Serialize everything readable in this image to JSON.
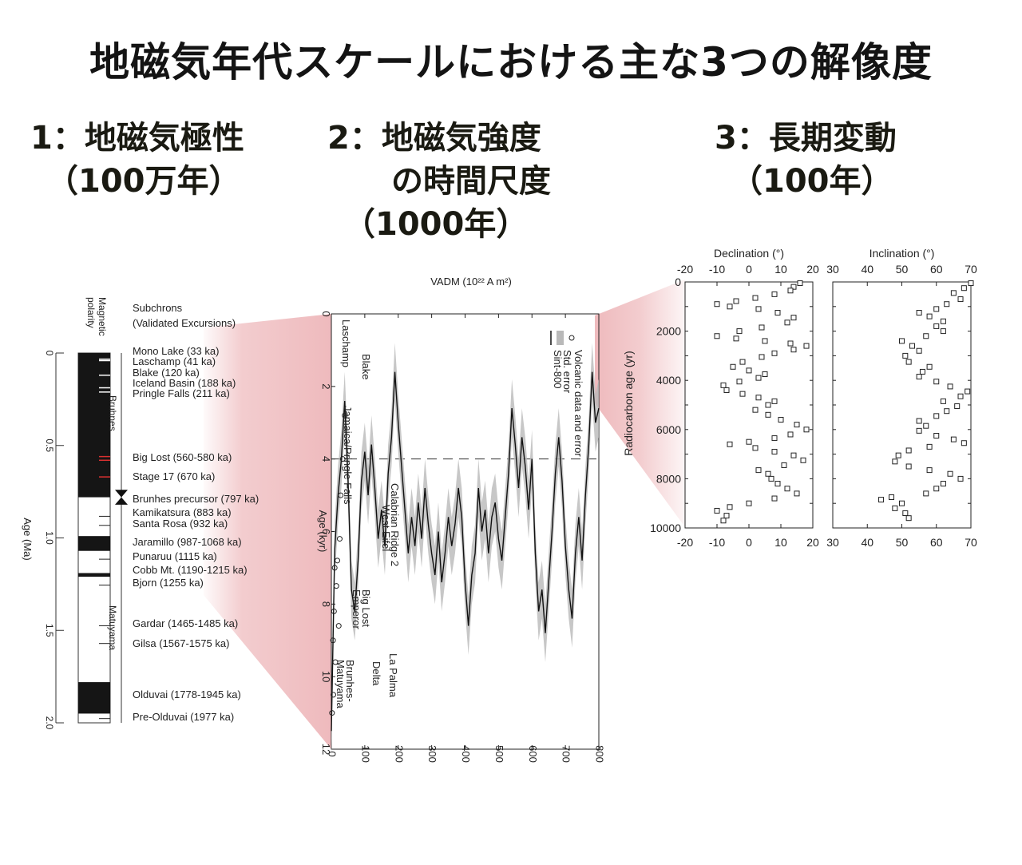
{
  "title": "地磁気年代スケールにおける主な3つの解像度",
  "headings": [
    {
      "line1": "1：地磁気極性",
      "line2": "　（100万年）",
      "line3": ""
    },
    {
      "line1": "2：地磁気強度",
      "line2": "　　の時間尺度",
      "line3": "　（1000年）"
    },
    {
      "line1": "3：長期変動",
      "line2": "　（100年）",
      "line3": ""
    }
  ],
  "chart_data": [
    {
      "type": "table",
      "name": "polarity-timescale",
      "axis_label": "Age (Ma)",
      "column_header": "Magnetic polarity",
      "list_header_1": "Subchrons",
      "list_header_2": "(Validated Excursions)",
      "ticks": [
        "0",
        "0.5",
        "1.0",
        "1.5",
        "2.0"
      ],
      "chrons": [
        "Bruhnes",
        "Matuyama"
      ],
      "normal_intervals_ma": [
        [
          0,
          0.78
        ],
        [
          0.99,
          1.07
        ],
        [
          1.19,
          1.21
        ],
        [
          1.78,
          1.95
        ]
      ],
      "events": [
        {
          "label": "Mono Lake (33 ka)",
          "age_ma": 0.033
        },
        {
          "label": "Laschamp (41 ka)",
          "age_ma": 0.041
        },
        {
          "label": "Blake (120 ka)",
          "age_ma": 0.12
        },
        {
          "label": "Iceland Basin (188 ka)",
          "age_ma": 0.188
        },
        {
          "label": "Pringle Falls (211 ka)",
          "age_ma": 0.211
        },
        {
          "label": "Big Lost (560-580 ka)",
          "age_ma": 0.57
        },
        {
          "label": "Stage 17 (670 ka)",
          "age_ma": 0.67
        },
        {
          "label": "Brunhes precursor (797 ka)",
          "age_ma": 0.797
        },
        {
          "label": "Kamikatsura (883 ka)",
          "age_ma": 0.883
        },
        {
          "label": "Santa Rosa (932 ka)",
          "age_ma": 0.932
        },
        {
          "label": "Jaramillo (987-1068 ka)",
          "age_ma": 1.03
        },
        {
          "label": "Punaruu (1115 ka)",
          "age_ma": 1.115
        },
        {
          "label": "Cobb  Mt. (1190-1215 ka)",
          "age_ma": 1.2
        },
        {
          "label": "Bjorn (1255 ka)",
          "age_ma": 1.255
        },
        {
          "label": "Gardar (1465-1485 ka)",
          "age_ma": 1.475
        },
        {
          "label": "Gilsa (1567-1575 ka)",
          "age_ma": 1.571
        },
        {
          "label": "Olduvai (1778-1945 ka)",
          "age_ma": 1.86
        },
        {
          "label": "Pre-Olduvai (1977 ka)",
          "age_ma": 1.977
        }
      ]
    },
    {
      "type": "line",
      "name": "sint-800",
      "xlabel": "VADM (10²² A m²)",
      "ylabel": "Age (kyr)",
      "x_ticks": [
        "0",
        "2",
        "4",
        "6",
        "8",
        "10",
        "12"
      ],
      "y_ticks": [
        "0",
        "100",
        "200",
        "300",
        "400",
        "500",
        "600",
        "700",
        "800"
      ],
      "xlim": [
        0,
        12
      ],
      "ylim": [
        0,
        800
      ],
      "legend": [
        "Sint-800",
        "Std. error",
        "Volcanic data and error"
      ],
      "colors": {
        "line": "#111111",
        "band": "#b9b9b9"
      },
      "series": [
        {
          "values": [
            [
              0,
              11.5
            ],
            [
              10,
              6.5
            ],
            [
              20,
              5.0
            ],
            [
              30,
              4.0
            ],
            [
              40,
              2.4
            ],
            [
              50,
              4.6
            ],
            [
              60,
              7.6
            ],
            [
              70,
              8.2
            ],
            [
              80,
              6.8
            ],
            [
              90,
              4.6
            ],
            [
              100,
              3.8
            ],
            [
              110,
              5.0
            ],
            [
              120,
              3.6
            ],
            [
              130,
              4.8
            ],
            [
              140,
              6.2
            ],
            [
              150,
              5.4
            ],
            [
              160,
              6.4
            ],
            [
              170,
              4.4
            ],
            [
              180,
              3.4
            ],
            [
              190,
              1.6
            ],
            [
              200,
              3.0
            ],
            [
              210,
              4.2
            ],
            [
              220,
              5.4
            ],
            [
              230,
              6.6
            ],
            [
              240,
              5.6
            ],
            [
              250,
              6.4
            ],
            [
              260,
              5.2
            ],
            [
              270,
              6.2
            ],
            [
              280,
              4.8
            ],
            [
              290,
              5.8
            ],
            [
              300,
              6.6
            ],
            [
              310,
              7.2
            ],
            [
              320,
              6.0
            ],
            [
              330,
              7.4
            ],
            [
              340,
              6.6
            ],
            [
              350,
              5.6
            ],
            [
              360,
              6.4
            ],
            [
              370,
              5.8
            ],
            [
              380,
              4.8
            ],
            [
              390,
              5.6
            ],
            [
              400,
              7.4
            ],
            [
              410,
              8.6
            ],
            [
              420,
              7.2
            ],
            [
              430,
              6.6
            ],
            [
              440,
              4.8
            ],
            [
              450,
              6.0
            ],
            [
              460,
              5.4
            ],
            [
              470,
              6.6
            ],
            [
              480,
              5.6
            ],
            [
              490,
              5.2
            ],
            [
              500,
              6.2
            ],
            [
              510,
              6.8
            ],
            [
              520,
              5.6
            ],
            [
              530,
              4.4
            ],
            [
              540,
              2.6
            ],
            [
              550,
              3.6
            ],
            [
              560,
              4.8
            ],
            [
              570,
              3.4
            ],
            [
              580,
              4.2
            ],
            [
              590,
              5.4
            ],
            [
              600,
              4.0
            ],
            [
              610,
              6.6
            ],
            [
              620,
              8.2
            ],
            [
              630,
              7.6
            ],
            [
              640,
              8.8
            ],
            [
              650,
              7.4
            ],
            [
              660,
              6.0
            ],
            [
              670,
              4.4
            ],
            [
              680,
              3.4
            ],
            [
              690,
              4.6
            ],
            [
              700,
              6.4
            ],
            [
              710,
              7.6
            ],
            [
              720,
              8.4
            ],
            [
              730,
              6.6
            ],
            [
              740,
              5.6
            ],
            [
              750,
              6.8
            ],
            [
              760,
              5.0
            ],
            [
              770,
              3.6
            ],
            [
              780,
              1.6
            ],
            [
              790,
              3.0
            ],
            [
              800,
              2.6
            ]
          ]
        }
      ],
      "annotations": [
        "Laschamp",
        "Blake",
        "Jamaica/Pringle Falls",
        "Calabrian Ridge 2",
        "West Eifel",
        "Big Lost",
        "Emperor",
        "La Palma",
        "Delta",
        "Brunhes-",
        "Matuyama"
      ]
    },
    {
      "type": "scatter",
      "name": "declination",
      "title": "Declination (°)",
      "ylabel": "Radiocarbon age (yr)",
      "xlim": [
        -20,
        20
      ],
      "ylim": [
        0,
        10000
      ],
      "x_ticks": [
        "-20",
        "-10",
        "0",
        "10",
        "20"
      ],
      "y_ticks": [
        "0",
        "2000",
        "4000",
        "6000",
        "8000",
        "10000"
      ],
      "points": [
        [
          16,
          50
        ],
        [
          14,
          200
        ],
        [
          13,
          350
        ],
        [
          8,
          500
        ],
        [
          2,
          650
        ],
        [
          -4,
          780
        ],
        [
          -10,
          900
        ],
        [
          -6,
          1000
        ],
        [
          3,
          1100
        ],
        [
          9,
          1250
        ],
        [
          14,
          1450
        ],
        [
          12,
          1650
        ],
        [
          4,
          1850
        ],
        [
          -3,
          2000
        ],
        [
          -10,
          2200
        ],
        [
          -4,
          2300
        ],
        [
          5,
          2400
        ],
        [
          13,
          2500
        ],
        [
          18,
          2600
        ],
        [
          14,
          2750
        ],
        [
          8,
          2900
        ],
        [
          4,
          3050
        ],
        [
          -2,
          3250
        ],
        [
          -5,
          3450
        ],
        [
          0,
          3600
        ],
        [
          5,
          3750
        ],
        [
          3,
          3900
        ],
        [
          -3,
          4050
        ],
        [
          -8,
          4200
        ],
        [
          -7,
          4400
        ],
        [
          -2,
          4550
        ],
        [
          3,
          4700
        ],
        [
          8,
          4850
        ],
        [
          6,
          5000
        ],
        [
          2,
          5200
        ],
        [
          6,
          5400
        ],
        [
          10,
          5600
        ],
        [
          15,
          5800
        ],
        [
          18,
          6000
        ],
        [
          13,
          6200
        ],
        [
          8,
          6350
        ],
        [
          0,
          6500
        ],
        [
          -6,
          6600
        ],
        [
          2,
          6750
        ],
        [
          8,
          6900
        ],
        [
          14,
          7050
        ],
        [
          17,
          7250
        ],
        [
          11,
          7450
        ],
        [
          3,
          7650
        ],
        [
          6,
          7800
        ],
        [
          7,
          8000
        ],
        [
          9,
          8200
        ],
        [
          12,
          8400
        ],
        [
          15,
          8600
        ],
        [
          8,
          8800
        ],
        [
          0,
          9000
        ],
        [
          -6,
          9150
        ],
        [
          -10,
          9300
        ],
        [
          -7,
          9500
        ],
        [
          -8,
          9700
        ]
      ]
    },
    {
      "type": "scatter",
      "name": "inclination",
      "title": "Inclination (°)",
      "xlim": [
        30,
        70
      ],
      "ylim": [
        0,
        10000
      ],
      "x_ticks": [
        "30",
        "40",
        "50",
        "60",
        "70"
      ],
      "points": [
        [
          70,
          50
        ],
        [
          68,
          250
        ],
        [
          65,
          450
        ],
        [
          67,
          700
        ],
        [
          63,
          900
        ],
        [
          60,
          1100
        ],
        [
          55,
          1250
        ],
        [
          58,
          1400
        ],
        [
          62,
          1600
        ],
        [
          60,
          1800
        ],
        [
          62,
          2000
        ],
        [
          57,
          2200
        ],
        [
          50,
          2400
        ],
        [
          53,
          2600
        ],
        [
          55,
          2800
        ],
        [
          51,
          3000
        ],
        [
          52,
          3250
        ],
        [
          58,
          3450
        ],
        [
          56,
          3650
        ],
        [
          55,
          3850
        ],
        [
          60,
          4050
        ],
        [
          64,
          4250
        ],
        [
          69,
          4450
        ],
        [
          67,
          4650
        ],
        [
          62,
          4850
        ],
        [
          66,
          5050
        ],
        [
          63,
          5250
        ],
        [
          60,
          5450
        ],
        [
          55,
          5650
        ],
        [
          57,
          5850
        ],
        [
          55,
          6050
        ],
        [
          60,
          6250
        ],
        [
          65,
          6400
        ],
        [
          68,
          6550
        ],
        [
          58,
          6700
        ],
        [
          52,
          6850
        ],
        [
          49,
          7050
        ],
        [
          48,
          7300
        ],
        [
          52,
          7500
        ],
        [
          58,
          7650
        ],
        [
          64,
          7800
        ],
        [
          67,
          8000
        ],
        [
          62,
          8200
        ],
        [
          60,
          8400
        ],
        [
          57,
          8600
        ],
        [
          47,
          8750
        ],
        [
          44,
          8850
        ],
        [
          50,
          9000
        ],
        [
          48,
          9200
        ],
        [
          51,
          9400
        ],
        [
          52,
          9600
        ]
      ]
    }
  ]
}
